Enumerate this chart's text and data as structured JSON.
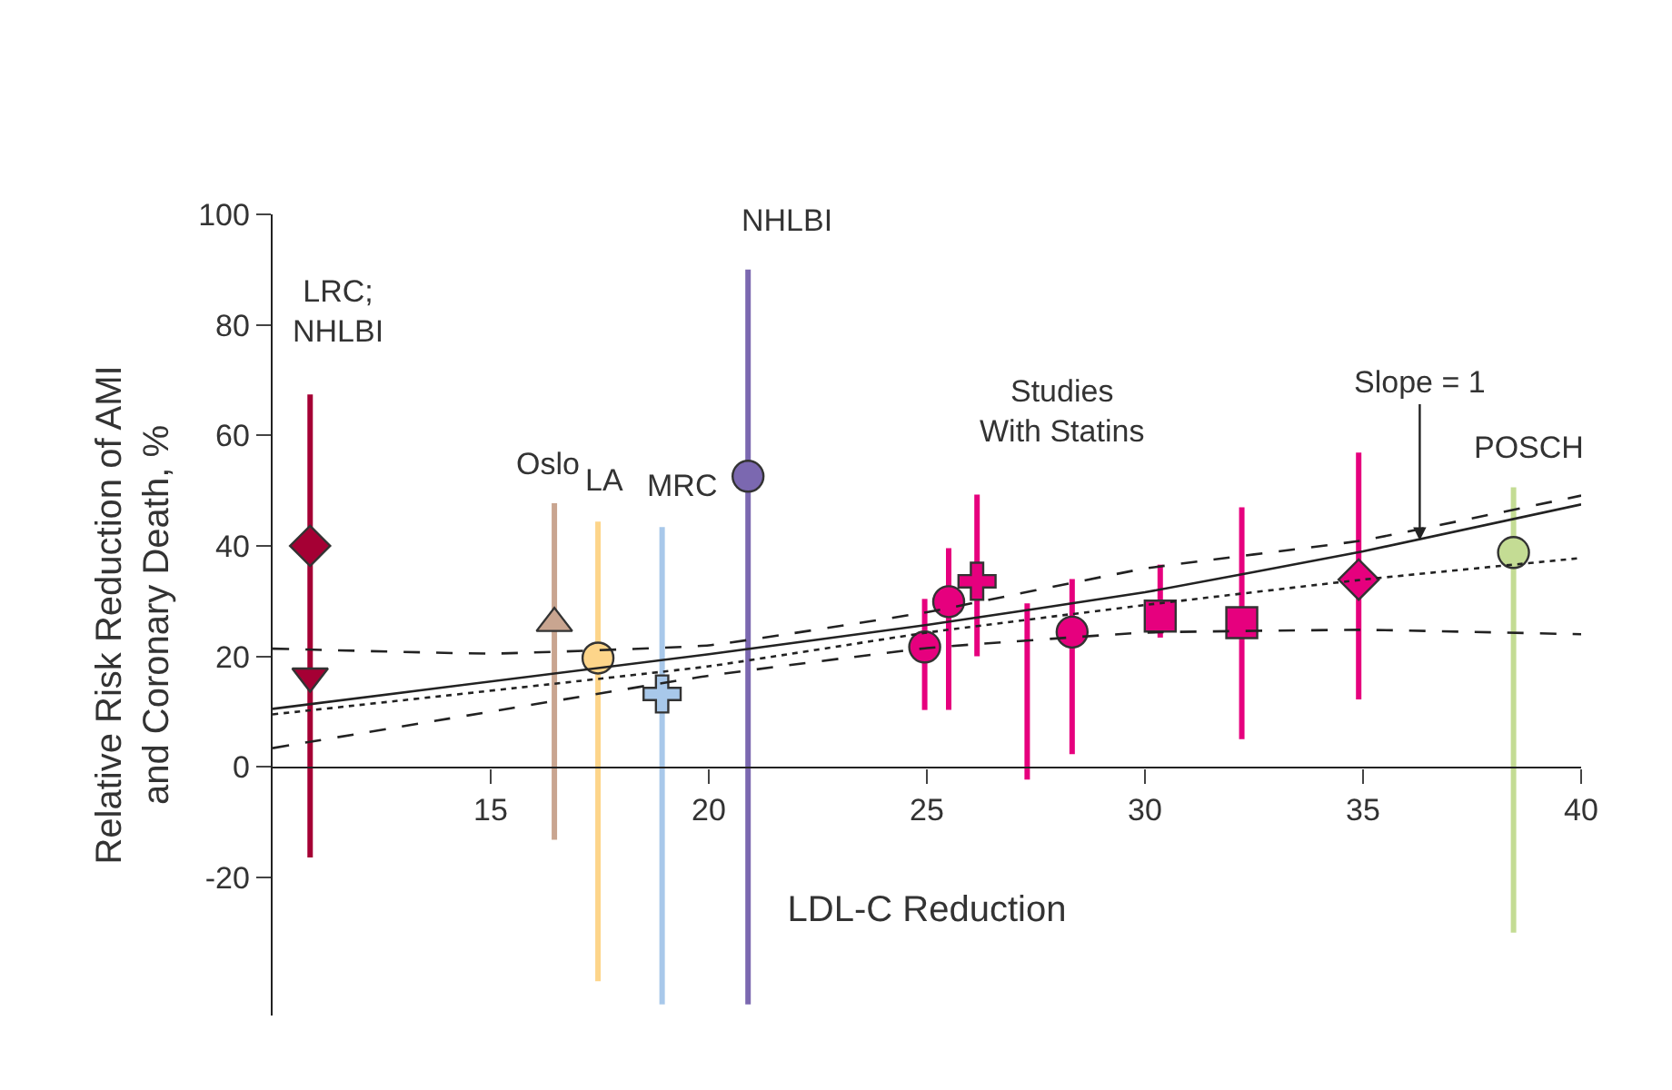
{
  "chart_data": {
    "type": "scatter",
    "xlabel": "LDL-C Reduction",
    "ylabel": "Relative Risk Reduction of AMI\nand Coronary Death, %",
    "xlim": [
      10,
      40
    ],
    "xticks": [
      15,
      20,
      25,
      30,
      35,
      40
    ],
    "ylim": [
      -45,
      100
    ],
    "yticks": [
      -20,
      0,
      20,
      40,
      60,
      80,
      100
    ],
    "series": [
      {
        "type": "scatter",
        "marker": "diamond",
        "color": "#a50034",
        "x": [
          10.86
        ],
        "values": [
          40
        ],
        "errors": [
          [
            -16.4,
            67.4
          ]
        ]
      },
      {
        "type": "scatter",
        "marker": "triangle-down",
        "color": "#a50034",
        "x": [
          10.86
        ],
        "values": [
          16.4
        ]
      },
      {
        "type": "scatter",
        "marker": "triangle",
        "color": "#c9a590",
        "x": [
          16.46
        ],
        "values": [
          26
        ],
        "errors": [
          [
            -13.2,
            47.7
          ]
        ]
      },
      {
        "marker": "circle",
        "color": "#fdd58a",
        "x": [
          17.46
        ],
        "values": [
          19.7
        ],
        "errors": [
          [
            -38.8,
            44.4
          ]
        ]
      },
      {
        "type": "scatter",
        "marker": "cross",
        "color": "#a8c8ea",
        "x": [
          18.93
        ],
        "values": [
          13.2
        ],
        "errors": [
          [
            -43,
            43.4
          ]
        ]
      },
      {
        "type": "scatter",
        "marker": "circle",
        "color": "#7b68b0",
        "x": [
          20.9
        ],
        "values": [
          52.6
        ],
        "errors": [
          [
            -43,
            90
          ]
        ]
      },
      {
        "type": "scatter",
        "marker": "circle",
        "color": "#e6007e",
        "x": [
          24.95
        ],
        "values": [
          21.7
        ],
        "errors": [
          [
            10.3,
            30.4
          ]
        ]
      },
      {
        "type": "scatter",
        "marker": "circle",
        "color": "#e6007e",
        "x": [
          25.5
        ],
        "values": [
          29.9
        ],
        "errors": [
          [
            10.3,
            39.6
          ]
        ]
      },
      {
        "type": "scatter",
        "marker": "cross",
        "color": "#e6007e",
        "x": [
          26.15
        ],
        "values": [
          33.6
        ],
        "errors": [
          [
            20,
            49.3
          ]
        ]
      },
      {
        "type": "line",
        "line_style": "solid",
        "color": "#e6007e",
        "x": [
          27.3,
          27.3
        ],
        "values": [
          -2.3,
          29.6
        ]
      },
      {
        "marker": "circle",
        "color": "#e6007e",
        "x": [
          28.33
        ],
        "values": [
          24.4
        ],
        "errors": [
          [
            2.3,
            34
          ]
        ]
      },
      {
        "type": "scatter",
        "marker": "square",
        "color": "#e6007e",
        "x": [
          30.35
        ],
        "values": [
          27.3
        ],
        "errors": [
          [
            23.4,
            36.6
          ]
        ]
      },
      {
        "type": "scatter",
        "marker": "square",
        "color": "#e6007e",
        "x": [
          32.22
        ],
        "values": [
          26.1
        ],
        "errors": [
          [
            5,
            47
          ]
        ]
      },
      {
        "type": "scatter",
        "marker": "diamond",
        "color": "#e6007e",
        "x": [
          34.9
        ],
        "values": [
          33.9
        ],
        "errors": [
          [
            12.2,
            56.9
          ]
        ]
      },
      {
        "type": "scatter",
        "marker": "circle",
        "color": "#c4dc94",
        "x": [
          38.45
        ],
        "values": [
          38.8
        ],
        "errors": [
          [
            -30,
            50.6
          ]
        ]
      },
      {
        "type": "line",
        "line_style": "solid",
        "color": "#222222",
        "x": [
          10,
          20,
          25,
          30,
          35,
          40
        ],
        "values": [
          10.5,
          20.4,
          25.7,
          31.6,
          39,
          47.5
        ]
      },
      {
        "type": "line",
        "line_style": "dashed",
        "color": "#222222",
        "x": [
          10,
          15,
          20,
          25,
          30,
          35,
          40
        ],
        "values": [
          21.4,
          20.5,
          22,
          28,
          35.9,
          41,
          49.1
        ]
      },
      {
        "type": "line",
        "line_style": "dashed",
        "color": "#222222",
        "x": [
          10,
          20,
          25,
          30,
          35,
          40
        ],
        "values": [
          3.4,
          16.5,
          21.5,
          24.3,
          24.8,
          24
        ]
      },
      {
        "type": "line",
        "line_style": "dotted",
        "color": "#222222",
        "x": [
          10,
          20,
          25,
          30,
          35,
          40
        ],
        "values": [
          9.5,
          18.2,
          24.3,
          29.3,
          33.9,
          37.8
        ]
      }
    ],
    "annotations": [
      "LRC;\nNHLBI",
      "Oslo",
      "LA",
      "MRC",
      "NHLBI",
      "Studies\nWith Statins",
      {
        "text": "Slope = 1",
        "x": 36.3,
        "y": 41
      },
      "POSCH"
    ]
  }
}
